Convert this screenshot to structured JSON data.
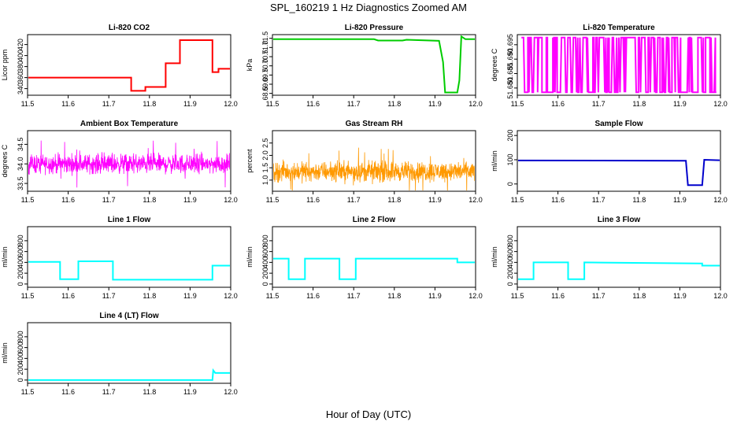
{
  "figure": {
    "title": "SPL_160219  1 Hz Diagnostics Zoomed AM",
    "xlabel": "Hour of Day (UTC)"
  },
  "chart_data": [
    {
      "type": "line",
      "title": "Li-820 CO2",
      "ylabel": "Licor ppm",
      "color": "#ff0000",
      "xlim": [
        11.5,
        12.0
      ],
      "ylim": [
        328,
        438
      ],
      "xticks": [
        "11.5",
        "11.6",
        "11.7",
        "11.8",
        "11.9",
        "12.0"
      ],
      "yticks": [
        340,
        360,
        380,
        400,
        420
      ],
      "x": [
        11.5,
        11.755,
        11.755,
        11.79,
        11.79,
        11.84,
        11.84,
        11.875,
        11.875,
        11.955,
        11.955,
        11.97,
        11.97,
        12.0
      ],
      "y": [
        360,
        360,
        336,
        336,
        343,
        343,
        386,
        386,
        428,
        428,
        370,
        370,
        376,
        376
      ]
    },
    {
      "type": "line",
      "title": "Li-820 Pressure",
      "ylabel": "kPa",
      "color": "#00cc00",
      "xlim": [
        11.5,
        12.0
      ],
      "ylim": [
        68.4,
        71.7
      ],
      "xticks": [
        "11.5",
        "11.6",
        "11.7",
        "11.8",
        "11.9",
        "12.0"
      ],
      "yticks": [
        "68.5",
        "69.0",
        "69.5",
        "70.0",
        "70.5",
        "71.0",
        "71.5"
      ],
      "x": [
        11.5,
        11.75,
        11.76,
        11.82,
        11.83,
        11.91,
        11.92,
        11.925,
        11.955,
        11.96,
        11.965,
        11.975,
        12.0
      ],
      "y": [
        71.45,
        71.45,
        71.38,
        71.38,
        71.42,
        71.36,
        70.2,
        68.55,
        68.55,
        69.2,
        71.6,
        71.45,
        71.45
      ]
    },
    {
      "type": "line",
      "title": "Li-820 Temperature",
      "ylabel": "degrees C",
      "color": "#ff00ff",
      "xlim": [
        11.5,
        12.0
      ],
      "ylim": [
        51.6775,
        51.6985
      ],
      "xticks": [
        "11.5",
        "11.6",
        "11.7",
        "11.8",
        "11.9",
        "12.0"
      ],
      "yticks": [
        "51.680",
        "51.685",
        "51.690",
        "51.695"
      ],
      "levels": [
        51.6785,
        51.6975
      ]
    },
    {
      "type": "line",
      "title": "Ambient Box Temperature",
      "ylabel": "degrees C",
      "color": "#ff00ff",
      "xlim": [
        11.5,
        12.0
      ],
      "ylim": [
        33.3,
        34.85
      ],
      "xticks": [
        "11.5",
        "11.6",
        "11.7",
        "11.8",
        "11.9",
        "12.0"
      ],
      "yticks": [
        "33.5",
        "34.0",
        "34.5"
      ],
      "mean": 34.0,
      "range": [
        33.4,
        34.7
      ]
    },
    {
      "type": "line",
      "title": "Gas Stream RH",
      "ylabel": "percent",
      "color": "#ff9900",
      "xlim": [
        11.5,
        12.0
      ],
      "ylim": [
        0.55,
        3.0
      ],
      "xticks": [
        "11.5",
        "11.6",
        "11.7",
        "11.8",
        "11.9",
        "12.0"
      ],
      "yticks": [
        "1.0",
        "1.5",
        "2.0",
        "2.5"
      ],
      "mean": 1.35,
      "range": [
        0.8,
        2.9
      ]
    },
    {
      "type": "line",
      "title": "Sample Flow",
      "ylabel": "ml/min",
      "color": "#0000cc",
      "xlim": [
        11.5,
        12.0
      ],
      "ylim": [
        -30,
        220
      ],
      "xticks": [
        "11.5",
        "11.6",
        "11.7",
        "11.8",
        "11.9",
        "12.0"
      ],
      "yticks": [
        0,
        100,
        200
      ],
      "x": [
        11.5,
        11.915,
        11.92,
        11.955,
        11.96,
        12.0
      ],
      "y": [
        97,
        96,
        -5,
        -5,
        100,
        98
      ]
    },
    {
      "type": "line",
      "title": "Line 1 Flow",
      "ylabel": "ml/min",
      "color": "#00ffff",
      "xlim": [
        11.5,
        12.0
      ],
      "ylim": [
        -60,
        1060
      ],
      "xticks": [
        "11.5",
        "11.6",
        "11.7",
        "11.8",
        "11.9",
        "12.0"
      ],
      "yticks": [
        0,
        200,
        400,
        600,
        800
      ],
      "x": [
        11.5,
        11.58,
        11.58,
        11.625,
        11.625,
        11.71,
        11.71,
        11.955,
        11.955,
        12.0
      ],
      "y": [
        410,
        410,
        90,
        90,
        420,
        420,
        80,
        80,
        340,
        340
      ]
    },
    {
      "type": "line",
      "title": "Line 2 Flow",
      "ylabel": "ml/min",
      "color": "#00ffff",
      "xlim": [
        11.5,
        12.0
      ],
      "ylim": [
        -60,
        1060
      ],
      "xticks": [
        "11.5",
        "11.6",
        "11.7",
        "11.8",
        "11.9",
        "12.0"
      ],
      "yticks": [
        0,
        200,
        400,
        600,
        800
      ],
      "x": [
        11.5,
        11.54,
        11.54,
        11.58,
        11.58,
        11.665,
        11.665,
        11.705,
        11.705,
        11.955,
        11.955,
        12.0
      ],
      "y": [
        470,
        470,
        90,
        90,
        470,
        470,
        90,
        90,
        470,
        470,
        400,
        400
      ]
    },
    {
      "type": "line",
      "title": "Line 3 Flow",
      "ylabel": "ml/min",
      "color": "#00ffff",
      "xlim": [
        11.5,
        12.0
      ],
      "ylim": [
        -60,
        1060
      ],
      "xticks": [
        "11.5",
        "11.6",
        "11.7",
        "11.8",
        "11.9",
        "12.0"
      ],
      "yticks": [
        0,
        200,
        400,
        600,
        800
      ],
      "x": [
        11.5,
        11.54,
        11.54,
        11.625,
        11.625,
        11.665,
        11.665,
        11.955,
        11.955,
        12.0
      ],
      "y": [
        90,
        90,
        400,
        400,
        90,
        90,
        400,
        380,
        340,
        340
      ]
    },
    {
      "type": "line",
      "title": "Line 4 (LT) Flow",
      "ylabel": "ml/min",
      "color": "#00ffff",
      "xlim": [
        11.5,
        12.0
      ],
      "ylim": [
        -60,
        1060
      ],
      "xticks": [
        "11.5",
        "11.6",
        "11.7",
        "11.8",
        "11.9",
        "12.0"
      ],
      "yticks": [
        0,
        200,
        400,
        600,
        800
      ],
      "x": [
        11.5,
        11.955,
        11.957,
        11.962,
        11.97,
        12.0
      ],
      "y": [
        0,
        0,
        180,
        130,
        130,
        130
      ]
    }
  ]
}
